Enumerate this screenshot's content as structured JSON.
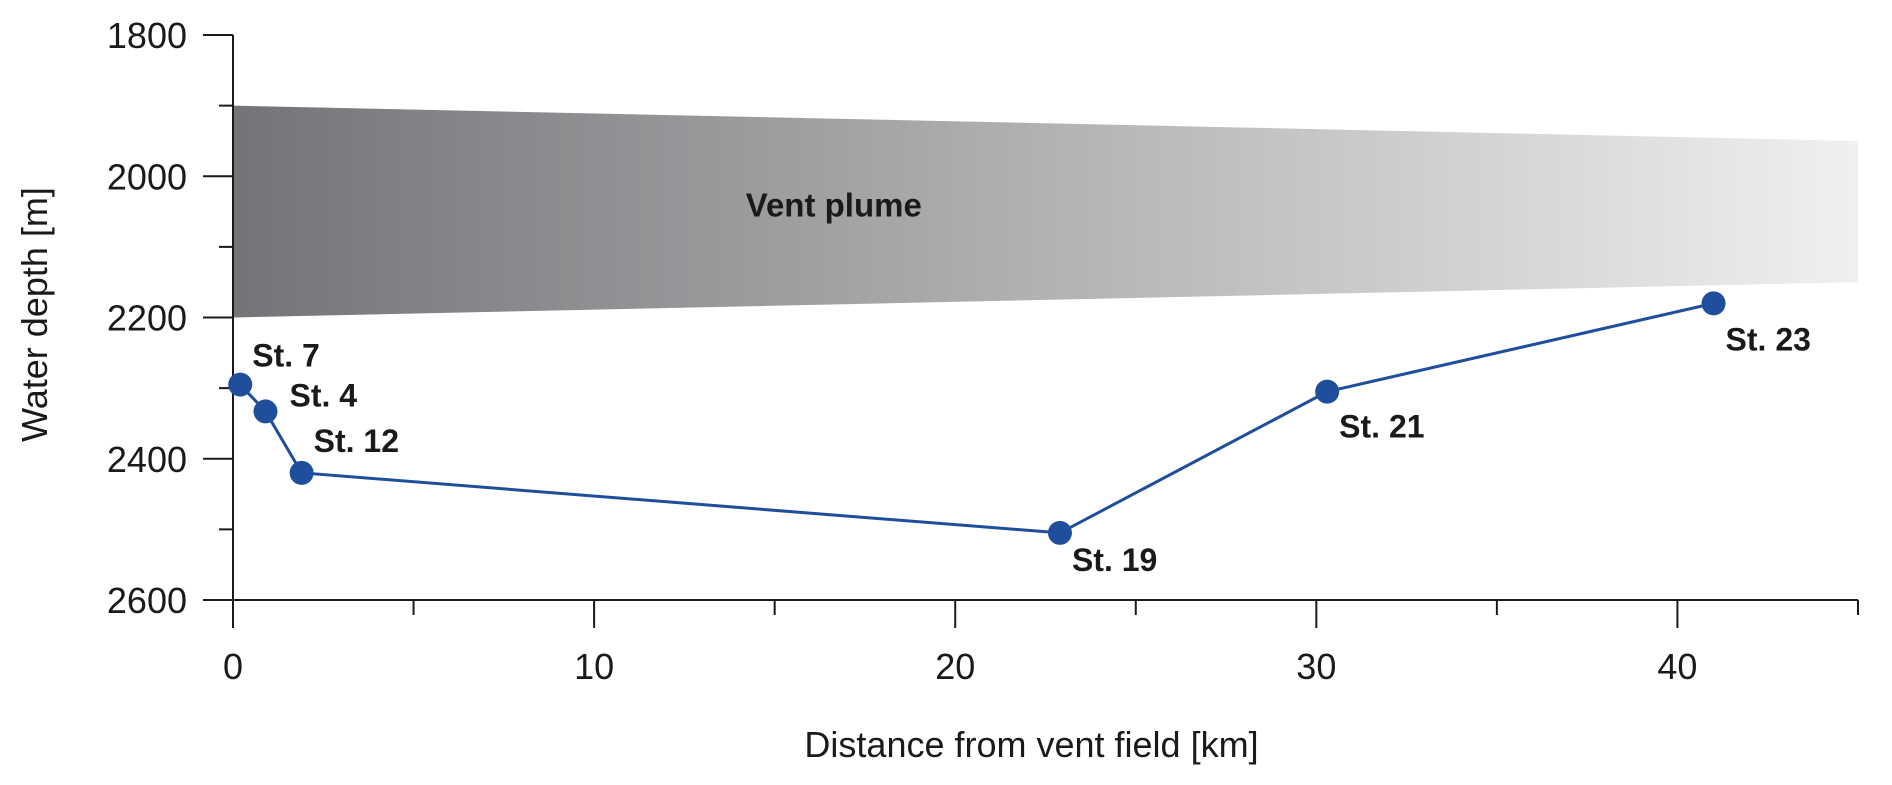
{
  "chart_data": {
    "type": "line",
    "xlabel": "Distance from vent field [km]",
    "ylabel": "Water depth [m]",
    "xlim": [
      0,
      45
    ],
    "ylim": [
      1800,
      2600
    ],
    "y_inverted": true,
    "x_ticks": [
      0,
      10,
      20,
      30,
      40
    ],
    "x_minor_ticks": [
      5,
      15,
      25,
      35,
      45
    ],
    "y_ticks": [
      1800,
      2000,
      2200,
      2400,
      2600
    ],
    "y_minor_ticks": [
      1900,
      2100,
      2300,
      2500
    ],
    "grid": false,
    "series": [
      {
        "color": "#1f4e9c",
        "points": [
          {
            "x": 0.2,
            "y": 2295,
            "label": "St. 7"
          },
          {
            "x": 0.9,
            "y": 2333,
            "label": "St. 4"
          },
          {
            "x": 1.9,
            "y": 2420,
            "label": "St. 12"
          },
          {
            "x": 22.9,
            "y": 2505,
            "label": "St. 19"
          },
          {
            "x": 30.3,
            "y": 2305,
            "label": "St. 21"
          },
          {
            "x": 41.0,
            "y": 2180,
            "label": "St. 23"
          }
        ]
      }
    ],
    "plume": {
      "label": "Vent plume",
      "top_start": 1900,
      "top_end": 1950,
      "bottom_start": 2200,
      "bottom_end": 2150,
      "x_end": 45,
      "color_start": "#747478",
      "color_end": "#f0f0f0"
    }
  }
}
